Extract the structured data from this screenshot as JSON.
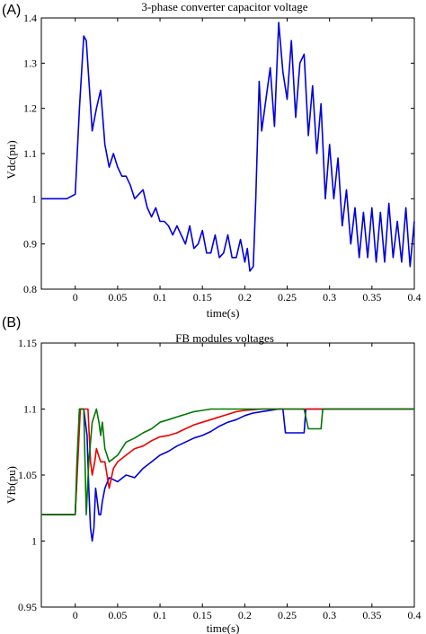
{
  "chart_data": [
    {
      "type": "line",
      "panel_label": "(A)",
      "title": "3-phase converter capacitor voltage",
      "xlabel": "time(s)",
      "ylabel": "Vdc(pu)",
      "xlim": [
        -0.04,
        0.4
      ],
      "ylim": [
        0.8,
        1.4
      ],
      "xticks": [
        0,
        0.05,
        0.1,
        0.15,
        0.2,
        0.25,
        0.3,
        0.35,
        0.4
      ],
      "xtick_labels": [
        "0",
        "0.05",
        "0.1",
        "0.15",
        "0.2",
        "0.25",
        "0.3",
        "0.35",
        "0.4"
      ],
      "yticks": [
        0.8,
        0.9,
        1.0,
        1.1,
        1.2,
        1.3,
        1.4
      ],
      "ytick_labels": [
        "0.8",
        "0.9",
        "1",
        "1.1",
        "1.2",
        "1.3",
        "1.4"
      ],
      "grid": false,
      "series": [
        {
          "color": "#0000dd",
          "x": [
            -0.04,
            -0.03,
            -0.02,
            -0.01,
            0.0,
            0.005,
            0.01,
            0.013,
            0.02,
            0.025,
            0.03,
            0.035,
            0.04,
            0.045,
            0.05,
            0.055,
            0.06,
            0.065,
            0.07,
            0.075,
            0.08,
            0.085,
            0.09,
            0.095,
            0.1,
            0.105,
            0.11,
            0.115,
            0.12,
            0.125,
            0.13,
            0.135,
            0.14,
            0.145,
            0.15,
            0.155,
            0.16,
            0.165,
            0.17,
            0.175,
            0.18,
            0.185,
            0.19,
            0.195,
            0.2,
            0.203,
            0.206,
            0.21,
            0.213,
            0.217,
            0.22,
            0.225,
            0.23,
            0.235,
            0.24,
            0.245,
            0.25,
            0.255,
            0.26,
            0.265,
            0.27,
            0.275,
            0.28,
            0.285,
            0.29,
            0.295,
            0.3,
            0.305,
            0.31,
            0.315,
            0.32,
            0.325,
            0.33,
            0.335,
            0.34,
            0.345,
            0.35,
            0.355,
            0.36,
            0.365,
            0.37,
            0.375,
            0.38,
            0.385,
            0.39,
            0.395,
            0.4
          ],
          "y": [
            1.0,
            1.0,
            1.0,
            1.0,
            1.01,
            1.2,
            1.36,
            1.35,
            1.15,
            1.2,
            1.24,
            1.12,
            1.07,
            1.1,
            1.07,
            1.05,
            1.05,
            1.03,
            1.0,
            1.01,
            1.02,
            0.98,
            0.96,
            0.98,
            0.95,
            0.95,
            0.94,
            0.92,
            0.94,
            0.92,
            0.9,
            0.94,
            0.89,
            0.9,
            0.93,
            0.88,
            0.88,
            0.92,
            0.87,
            0.88,
            0.92,
            0.87,
            0.87,
            0.91,
            0.86,
            0.89,
            0.84,
            0.85,
            1.0,
            1.26,
            1.15,
            1.22,
            1.29,
            1.16,
            1.39,
            1.28,
            1.22,
            1.35,
            1.18,
            1.3,
            1.32,
            1.14,
            1.25,
            1.1,
            1.21,
            1.0,
            1.12,
            1.0,
            1.09,
            0.94,
            1.02,
            0.9,
            0.98,
            0.87,
            0.97,
            0.87,
            0.98,
            0.86,
            0.97,
            0.86,
            0.99,
            0.87,
            0.95,
            0.86,
            0.98,
            0.85,
            0.95
          ]
        }
      ]
    },
    {
      "type": "line",
      "panel_label": "(B)",
      "title": "FB modules voltages",
      "xlabel": "time(s)",
      "ylabel": "Vfb(pu)",
      "xlim": [
        -0.04,
        0.4
      ],
      "ylim": [
        0.95,
        1.15
      ],
      "xticks": [
        0,
        0.05,
        0.1,
        0.15,
        0.2,
        0.25,
        0.3,
        0.35,
        0.4
      ],
      "xtick_labels": [
        "0",
        "0.05",
        "0.1",
        "0.15",
        "0.2",
        "0.25",
        "0.3",
        "0.35",
        "0.4"
      ],
      "yticks": [
        0.95,
        1.0,
        1.05,
        1.1,
        1.15
      ],
      "ytick_labels": [
        "0.95",
        "1",
        "1.05",
        "1.1",
        "1.15"
      ],
      "grid": false,
      "series": [
        {
          "color": "#0000dd",
          "x": [
            -0.04,
            0.0,
            0.002,
            0.005,
            0.01,
            0.014,
            0.016,
            0.018,
            0.02,
            0.022,
            0.024,
            0.026,
            0.028,
            0.03,
            0.032,
            0.035,
            0.04,
            0.05,
            0.06,
            0.07,
            0.08,
            0.09,
            0.1,
            0.11,
            0.12,
            0.13,
            0.14,
            0.15,
            0.16,
            0.17,
            0.18,
            0.19,
            0.2,
            0.21,
            0.22,
            0.23,
            0.24,
            0.245,
            0.248,
            0.25,
            0.27,
            0.272,
            0.275,
            0.3,
            0.38,
            0.4
          ],
          "y": [
            1.02,
            1.02,
            1.05,
            1.1,
            1.1,
            1.08,
            1.04,
            1.01,
            1.0,
            1.01,
            1.04,
            1.03,
            1.02,
            1.02,
            1.03,
            1.04,
            1.048,
            1.045,
            1.05,
            1.048,
            1.055,
            1.06,
            1.065,
            1.068,
            1.072,
            1.075,
            1.078,
            1.08,
            1.083,
            1.087,
            1.09,
            1.092,
            1.095,
            1.097,
            1.098,
            1.099,
            1.1,
            1.1,
            1.082,
            1.082,
            1.082,
            1.1,
            1.1,
            1.1,
            1.1,
            1.1
          ]
        },
        {
          "color": "#ee0000",
          "x": [
            -0.04,
            0.0,
            0.003,
            0.006,
            0.01,
            0.015,
            0.018,
            0.02,
            0.023,
            0.025,
            0.03,
            0.035,
            0.04,
            0.045,
            0.05,
            0.06,
            0.07,
            0.08,
            0.09,
            0.1,
            0.11,
            0.12,
            0.13,
            0.14,
            0.15,
            0.16,
            0.17,
            0.18,
            0.19,
            0.2,
            0.22,
            0.24,
            0.26,
            0.3,
            0.4
          ],
          "y": [
            1.02,
            1.02,
            1.06,
            1.1,
            1.1,
            1.1,
            1.06,
            1.05,
            1.06,
            1.07,
            1.06,
            1.06,
            1.04,
            1.055,
            1.06,
            1.065,
            1.07,
            1.072,
            1.076,
            1.079,
            1.08,
            1.082,
            1.085,
            1.088,
            1.09,
            1.092,
            1.094,
            1.096,
            1.098,
            1.099,
            1.1,
            1.1,
            1.1,
            1.1,
            1.1
          ]
        },
        {
          "color": "#007700",
          "x": [
            -0.04,
            0.0,
            0.002,
            0.005,
            0.01,
            0.013,
            0.016,
            0.02,
            0.025,
            0.028,
            0.03,
            0.032,
            0.035,
            0.04,
            0.05,
            0.06,
            0.07,
            0.08,
            0.09,
            0.1,
            0.11,
            0.12,
            0.13,
            0.14,
            0.15,
            0.16,
            0.18,
            0.2,
            0.25,
            0.27,
            0.275,
            0.29,
            0.292,
            0.3,
            0.4
          ],
          "y": [
            1.02,
            1.02,
            1.06,
            1.1,
            1.1,
            1.02,
            1.06,
            1.09,
            1.1,
            1.09,
            1.08,
            1.09,
            1.07,
            1.06,
            1.065,
            1.075,
            1.078,
            1.082,
            1.085,
            1.09,
            1.092,
            1.094,
            1.096,
            1.098,
            1.099,
            1.1,
            1.1,
            1.1,
            1.1,
            1.1,
            1.085,
            1.085,
            1.1,
            1.1,
            1.1
          ]
        }
      ]
    }
  ]
}
